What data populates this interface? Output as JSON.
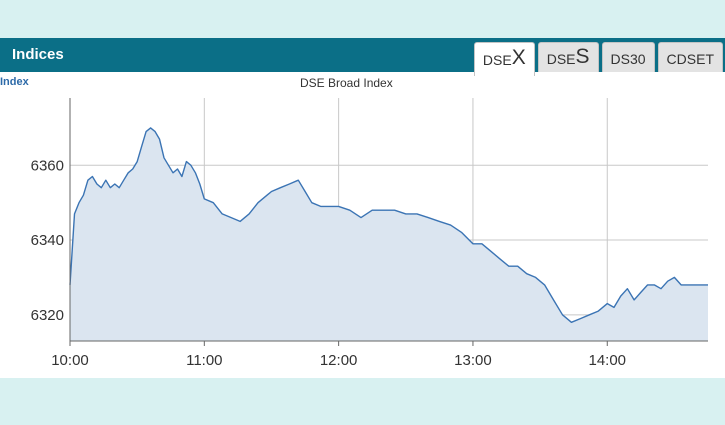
{
  "header": {
    "title": "Indices"
  },
  "tabs": [
    {
      "prefix": "DSE",
      "big": "X",
      "label": "",
      "active": true
    },
    {
      "prefix": "DSE",
      "big": "S",
      "label": "",
      "active": false
    },
    {
      "prefix": "",
      "big": "",
      "label": "DS30",
      "active": false
    },
    {
      "prefix": "",
      "big": "",
      "label": "CDSET",
      "active": false
    }
  ],
  "sub_label": "Index",
  "chart_data": {
    "type": "area",
    "title": "DSE Broad Index",
    "xlabel": "",
    "ylabel": "",
    "x_ticks": [
      "10:00",
      "11:00",
      "12:00",
      "13:00",
      "14:00"
    ],
    "y_ticks": [
      6320,
      6340,
      6360
    ],
    "xlim": [
      "10:00",
      "14:45"
    ],
    "ylim": [
      6313,
      6378
    ],
    "grid": true,
    "colors": {
      "line": "#3b74b4",
      "fill": "#dbe5f0",
      "grid": "#c8c8c8"
    },
    "series": [
      {
        "x": [
          "10:00",
          "10:02",
          "10:04",
          "10:06",
          "10:08",
          "10:10",
          "10:12",
          "10:14",
          "10:16",
          "10:18",
          "10:20",
          "10:22",
          "10:24",
          "10:26",
          "10:28",
          "10:30",
          "10:32",
          "10:34",
          "10:36",
          "10:38",
          "10:40",
          "10:42",
          "10:44",
          "10:46",
          "10:48",
          "10:50",
          "10:52",
          "10:54",
          "10:56",
          "10:58",
          "11:00",
          "11:04",
          "11:08",
          "11:12",
          "11:16",
          "11:20",
          "11:24",
          "11:28",
          "11:30",
          "11:34",
          "11:38",
          "11:42",
          "11:45",
          "11:48",
          "11:52",
          "11:56",
          "12:00",
          "12:05",
          "12:10",
          "12:15",
          "12:20",
          "12:25",
          "12:30",
          "12:35",
          "12:40",
          "12:45",
          "12:50",
          "12:55",
          "13:00",
          "13:04",
          "13:08",
          "13:12",
          "13:16",
          "13:20",
          "13:24",
          "13:28",
          "13:32",
          "13:36",
          "13:40",
          "13:44",
          "13:48",
          "13:52",
          "13:56",
          "14:00",
          "14:03",
          "14:06",
          "14:09",
          "14:12",
          "14:15",
          "14:18",
          "14:21",
          "14:24",
          "14:27",
          "14:30",
          "14:33",
          "14:36",
          "14:40",
          "14:45"
        ],
        "y": [
          6328,
          6347,
          6350,
          6352,
          6356,
          6357,
          6355,
          6354,
          6356,
          6354,
          6355,
          6354,
          6356,
          6358,
          6359,
          6361,
          6365,
          6369,
          6370,
          6369,
          6367,
          6362,
          6360,
          6358,
          6359,
          6357,
          6361,
          6360,
          6358,
          6355,
          6351,
          6350,
          6347,
          6346,
          6345,
          6347,
          6350,
          6352,
          6353,
          6354,
          6355,
          6356,
          6353,
          6350,
          6349,
          6349,
          6349,
          6348,
          6346,
          6348,
          6348,
          6348,
          6347,
          6347,
          6346,
          6345,
          6344,
          6342,
          6339,
          6339,
          6337,
          6335,
          6333,
          6333,
          6331,
          6330,
          6328,
          6324,
          6320,
          6318,
          6319,
          6320,
          6321,
          6323,
          6322,
          6325,
          6327,
          6324,
          6326,
          6328,
          6328,
          6327,
          6329,
          6330,
          6328,
          6328,
          6328,
          6328
        ]
      }
    ]
  }
}
